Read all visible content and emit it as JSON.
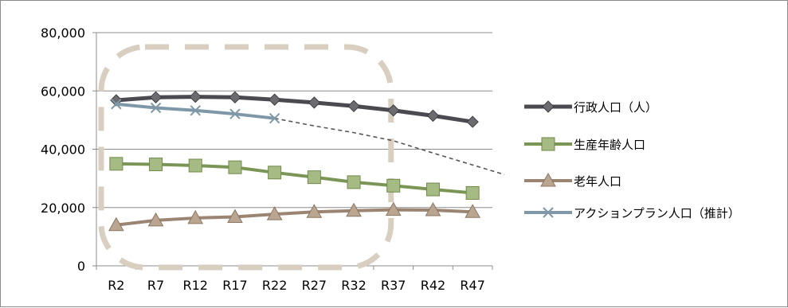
{
  "chart_data": {
    "type": "line",
    "title": "",
    "xlabel": "",
    "ylabel": "",
    "categories": [
      "R2",
      "R7",
      "R12",
      "R17",
      "R22",
      "R27",
      "R32",
      "R37",
      "R42",
      "R47"
    ],
    "ylim": [
      0,
      80000
    ],
    "y_ticks": [
      0,
      20000,
      40000,
      60000,
      80000
    ],
    "y_tick_labels": [
      "0",
      "20,000",
      "40,000",
      "60,000",
      "80,000"
    ],
    "grid": true,
    "legend_position": "right",
    "series": [
      {
        "name": "行政人口（人）",
        "color": "#4a4a50",
        "marker": "diamond",
        "values": [
          56800,
          57800,
          58000,
          57800,
          57000,
          56000,
          54800,
          53300,
          51500,
          49400
        ]
      },
      {
        "name": "生産年齢人口",
        "color": "#7a9556",
        "marker": "square",
        "values": [
          35000,
          34800,
          34400,
          33800,
          32000,
          30400,
          28700,
          27500,
          26200,
          25000
        ]
      },
      {
        "name": "老年人口",
        "color": "#9b8572",
        "marker": "triangle",
        "values": [
          14000,
          15600,
          16400,
          16800,
          17700,
          18500,
          18900,
          19200,
          19100,
          18500
        ]
      },
      {
        "name": "アクションプラン人口（推計）",
        "color": "#7f98a8",
        "marker": "x",
        "values": [
          55500,
          54200,
          53300,
          52100,
          50600,
          null,
          null,
          null,
          null,
          null
        ]
      }
    ],
    "trend_line": {
      "color": "#555555",
      "style": "dashed",
      "values": [
        null,
        null,
        null,
        null,
        50600,
        48000,
        45700,
        42900,
        38700,
        34600
      ]
    },
    "highlight_region": {
      "color": "#d9cfc1",
      "style": "dashed-rounded-rect",
      "from_category": "R2",
      "to_category": "R37"
    }
  }
}
